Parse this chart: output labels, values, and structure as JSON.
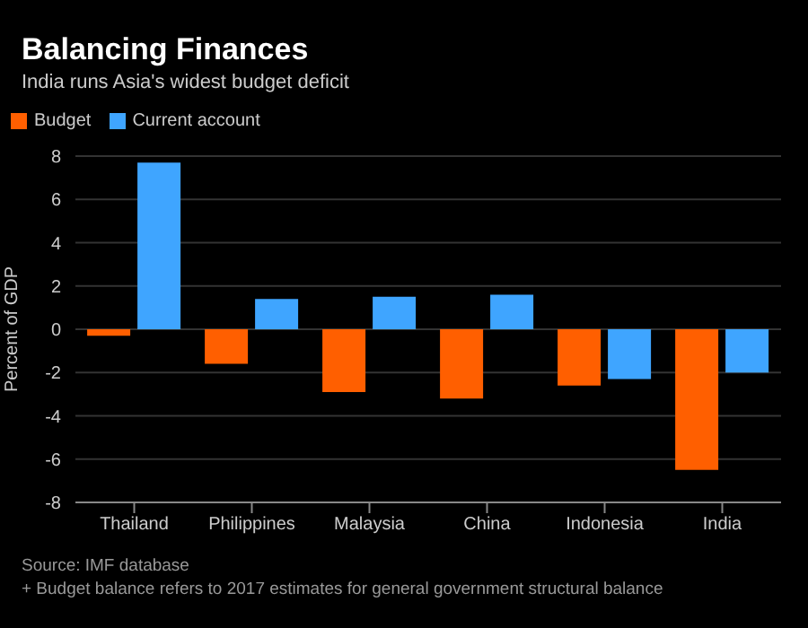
{
  "chart_data": {
    "type": "bar",
    "title": "Balancing Finances",
    "subtitle": "India runs Asia's widest budget deficit",
    "ylabel": "Percent of GDP",
    "categories": [
      "Thailand",
      "Philippines",
      "Malaysia",
      "China",
      "Indonesia",
      "India"
    ],
    "series": [
      {
        "name": "Budget",
        "color": "#ff5f00",
        "values": [
          -0.3,
          -1.6,
          -2.9,
          -3.2,
          -2.6,
          -6.5
        ]
      },
      {
        "name": "Current account",
        "color": "#3fa5ff",
        "values": [
          7.7,
          1.4,
          1.5,
          1.6,
          -2.3,
          -2.0
        ]
      }
    ],
    "ylim": [
      -8,
      8
    ],
    "yticks": [
      -8,
      -6,
      -4,
      -2,
      0,
      2,
      4,
      6,
      8
    ],
    "grid": "y",
    "legend": "top left",
    "annotations": [
      "Source: IMF database",
      "+ Budget balance refers to 2017 estimates for general government structural balance"
    ]
  }
}
